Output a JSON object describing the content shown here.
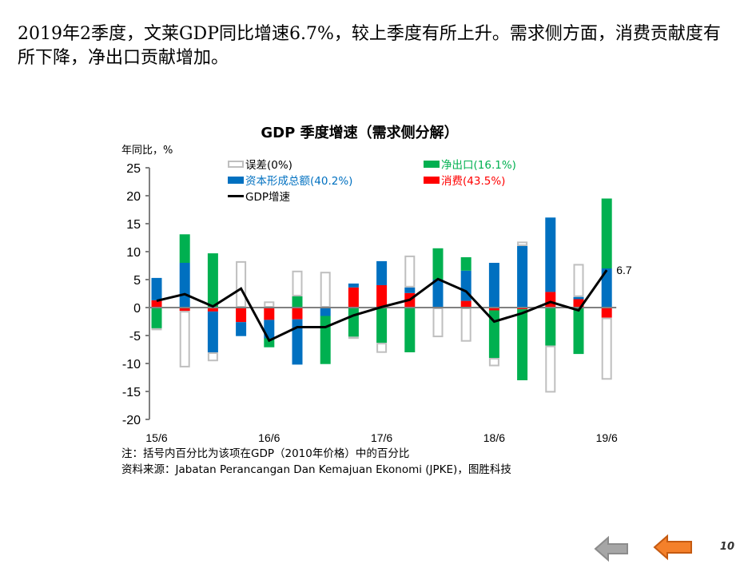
{
  "headline": "2019年2季度，文莱GDP同比增速6.7%，较上季度有所上升。需求侧方面，消费贡献度有所下降，净出口贡献增加。",
  "chart_data": {
    "type": "bar",
    "subtype": "stacked-bar-with-line",
    "title": "GDP 季度增速（需求侧分解）",
    "ylabel": "年同比，%",
    "xlabel": "",
    "ylim": [
      -20,
      25
    ],
    "yticks": [
      "25",
      "20",
      "15",
      "10",
      "5",
      "0",
      "-5",
      "-10",
      "-15",
      "-20"
    ],
    "xtick_labels": [
      "15/6",
      "16/6",
      "17/6",
      "18/6",
      "19/6"
    ],
    "categories": [
      "15/6",
      "15/9",
      "15/12",
      "16/3",
      "16/6",
      "16/9",
      "16/12",
      "17/3",
      "17/6",
      "17/9",
      "17/12",
      "18/3",
      "18/6",
      "18/9",
      "18/12",
      "19/3",
      "19/6"
    ],
    "series": [
      {
        "name": "消费(43.5%)",
        "key": "consumption",
        "color": "#ff0000",
        "values": [
          1.3,
          -0.6,
          -0.7,
          -2.6,
          -2.2,
          -2.1,
          0.0,
          3.6,
          4.0,
          2.6,
          0.0,
          1.2,
          -0.5,
          -0.3,
          2.8,
          1.5,
          -1.8
        ]
      },
      {
        "name": "资本形成总额(40.2%)",
        "key": "capital",
        "color": "#0070c0",
        "values": [
          4.0,
          8.0,
          -7.3,
          -2.5,
          -3.3,
          -8.1,
          -1.5,
          0.7,
          4.3,
          1.0,
          5.0,
          5.4,
          8.0,
          11.0,
          13.3,
          0.4,
          7.0
        ]
      },
      {
        "name": "净出口(16.1%)",
        "key": "net_exports",
        "color": "#00b050",
        "values": [
          -3.7,
          5.1,
          9.7,
          0.0,
          -1.6,
          2.0,
          -8.6,
          -5.2,
          -6.3,
          -8.0,
          5.6,
          2.4,
          -8.5,
          -12.7,
          -6.8,
          -8.3,
          12.5
        ]
      },
      {
        "name": "误差(0%)",
        "key": "error",
        "color": "#bfbfbf",
        "values": [
          -0.3,
          -10.1,
          -1.6,
          8.3,
          1.1,
          4.6,
          6.4,
          -0.4,
          -1.8,
          5.7,
          -5.3,
          -6.1,
          -1.5,
          0.8,
          -8.4,
          5.9,
          -11.1
        ]
      }
    ],
    "line": {
      "name": "GDP增速",
      "color": "#000000",
      "values": [
        1.2,
        2.4,
        0.2,
        3.4,
        -5.9,
        -3.5,
        -3.5,
        -1.4,
        0.1,
        1.4,
        5.1,
        2.9,
        -2.5,
        -1.0,
        1.0,
        -0.5,
        6.7
      ]
    },
    "annotation": "6.7",
    "legend_position": "top"
  },
  "legend": {
    "error": "误差(0%)",
    "net_exports": "净出口(16.1%)",
    "capital": "资本形成总额(40.2%)",
    "consumption": "消费(43.5%)",
    "gdp": "GDP增速"
  },
  "notes": {
    "note": "注：括号内百分比为该项在GDP（2010年价格）中的百分比",
    "source": "资料来源：Jabatan Perancangan Dan Kemajuan Ekonomi (JPKE)，图胜科技"
  },
  "footer": {
    "page_number": "10",
    "back_icon": "arrow-left-gray",
    "prev_icon": "arrow-left-orange"
  }
}
